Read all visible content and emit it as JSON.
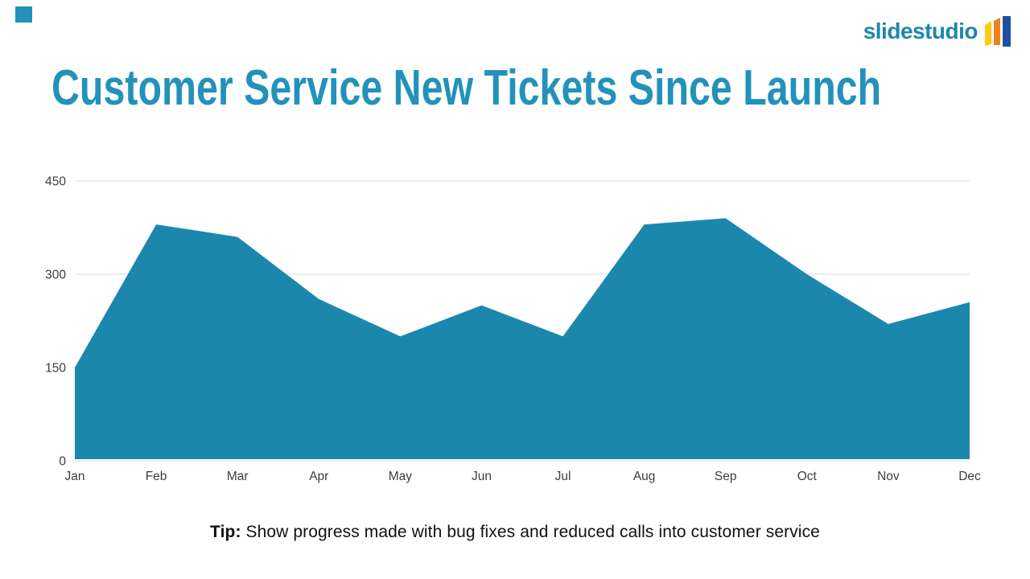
{
  "slide": {
    "title": "Customer Service New Tickets Since Launch",
    "tip_label": "Tip:",
    "tip_text": " Show progress made with bug fixes and reduced calls into customer service"
  },
  "logo": {
    "text": "slidestudio",
    "text_color": "#1d87ac",
    "icon": "slides-fan-icon",
    "icon_colors": [
      "#fdc913",
      "#f0801a",
      "#1f4fa0"
    ]
  },
  "colors": {
    "title_teal": "#2292ba",
    "corner_accent": "#2292ba",
    "area_fill": "#1c87ad",
    "gridline": "#d9d9d9",
    "axis_text": "#3d3d3d"
  },
  "chart_data": {
    "type": "area",
    "title": "Customer Service New Tickets Since Launch",
    "categories": [
      "Jan",
      "Feb",
      "Mar",
      "Apr",
      "May",
      "Jun",
      "Jul",
      "Aug",
      "Sep",
      "Oct",
      "Nov",
      "Dec"
    ],
    "values": [
      150,
      380,
      360,
      260,
      200,
      250,
      200,
      380,
      390,
      300,
      220,
      255
    ],
    "xlabel": "",
    "ylabel": "",
    "ylim": [
      0,
      450
    ],
    "yticks": [
      0,
      150,
      300,
      450
    ],
    "grid": true,
    "legend": false,
    "color": "#1c87ad"
  }
}
